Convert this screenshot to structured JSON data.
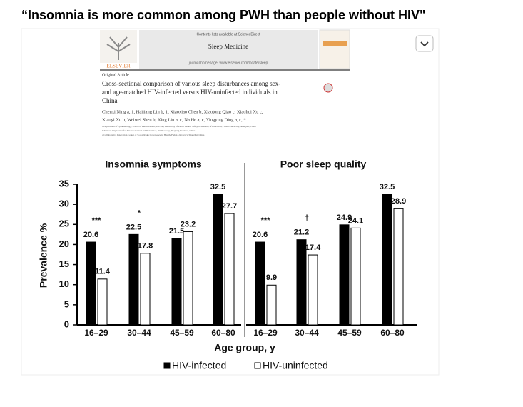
{
  "slide_title": "“Insomnia is more common among PWH than people without HIV\"",
  "paper": {
    "availability": "Contents lists available at ScienceDirect",
    "journal": "Sleep Medicine",
    "homepage": "journal homepage: www.elsevier.com/locate/sleep",
    "publisher": "ELSEVIER",
    "article_type": "Original Article",
    "title_lines": [
      "Cross-sectional comparison of various sleep disturbances among sex-",
      "and age-matched HIV-infected versus HIV-uninfected individuals in",
      "China"
    ],
    "author_lines": [
      "Chenxi Ning a, 1, Haijiang Lin b, 1, Xiaoxiao Chen b, Xiaotong Qiao c, Xiaohui Xu c,",
      "Xiaoyi Xu b, Weiwei Shen b, Xing Liu a, c, Na He a, c, Yingying Ding a, c, *"
    ],
    "affiliations": [
      "a Department of Epidemiology, School of Public Health, The Key Laboratory of Public Health Safety of Ministry of Education, Fudan University, Shanghai, China",
      "b Taizhou City Center for Disease Control and Prevention, Taizhou City, Zhejiang Province, China",
      "c Collaborative Innovation Center of Social Risks Governance in Health, Fudan University, Shanghai, China"
    ]
  },
  "chart_data": [
    {
      "type": "bar",
      "title": "Insomnia symptoms",
      "categories": [
        "16–29",
        "30–44",
        "45–59",
        "60–80"
      ],
      "series": [
        {
          "name": "HIV-infected",
          "color": "#000000",
          "values": [
            20.6,
            22.5,
            21.5,
            32.5
          ]
        },
        {
          "name": "HIV-uninfected",
          "color": "#ffffff",
          "values": [
            11.4,
            17.8,
            23.2,
            27.7
          ]
        }
      ],
      "annotations": [
        "***",
        "*",
        null,
        null
      ],
      "ylim": [
        0,
        35
      ],
      "yticks": [
        0,
        5,
        10,
        15,
        20,
        25,
        30,
        35
      ],
      "ylabel": "Prevalence %",
      "xlabel": "Age group, y"
    },
    {
      "type": "bar",
      "title": "Poor sleep quality",
      "categories": [
        "16–29",
        "30–44",
        "45–59",
        "60–80"
      ],
      "series": [
        {
          "color": "#000000",
          "values": [
            20.6,
            21.2,
            24.9,
            32.5
          ]
        },
        {
          "color": "#ffffff",
          "values": [
            9.9,
            17.4,
            24.1,
            28.9
          ]
        }
      ],
      "annotations": [
        "***",
        "†",
        null,
        null
      ],
      "ylim": [
        0,
        35
      ]
    }
  ]
}
